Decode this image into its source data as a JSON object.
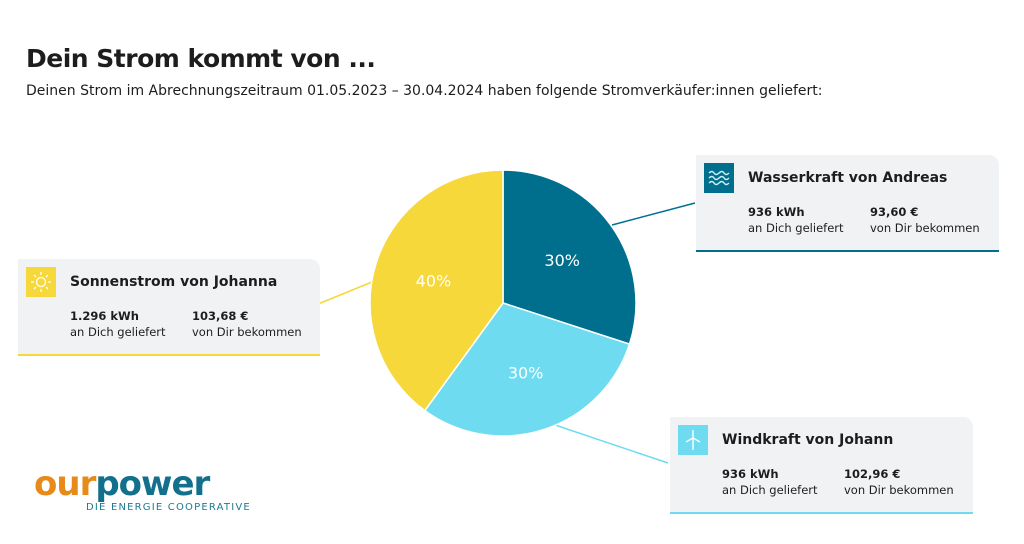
{
  "title": "Dein Strom kommt von ...",
  "subtitle": "Deinen Strom im Abrechnungszeitraum 01.05.2023 – 30.04.2024 haben folgende Stromverkäufer:innen geliefert:",
  "chart_data": {
    "type": "pie",
    "slices": [
      {
        "label": "30%",
        "value": 30,
        "color": "#006f8e"
      },
      {
        "label": "30%",
        "value": 30,
        "color": "#6edbf1"
      },
      {
        "label": "40%",
        "value": 40,
        "color": "#f6d83a"
      }
    ]
  },
  "cards": [
    {
      "name": "Wasserkraft von Andreas",
      "icon": "water-waves-icon",
      "kwh": "936 kWh",
      "kwh_label": "an Dich geliefert",
      "eur": "93,60 €",
      "eur_label": "von Dir bekommen",
      "color": "#006f8e"
    },
    {
      "name": "Windkraft von Johann",
      "icon": "wind-turbine-icon",
      "kwh": "936 kWh",
      "kwh_label": "an Dich geliefert",
      "eur": "102,96 €",
      "eur_label": "von Dir bekommen",
      "color": "#6edbf1"
    },
    {
      "name": "Sonnenstrom von Johanna",
      "icon": "sun-icon",
      "kwh": "1.296 kWh",
      "kwh_label": "an Dich geliefert",
      "eur": "103,68 €",
      "eur_label": "von Dir bekommen",
      "color": "#f6d83a"
    }
  ],
  "logo": {
    "our": "our",
    "power": "power",
    "tagline": "DIE ENERGIE COOPERATIVE"
  }
}
